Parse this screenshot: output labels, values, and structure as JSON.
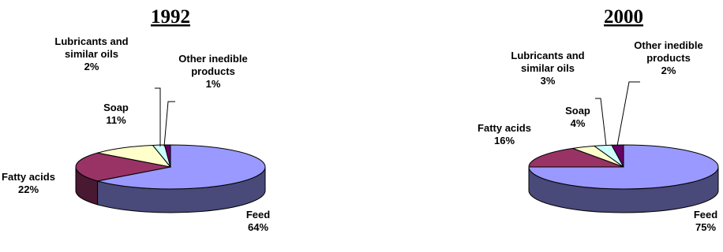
{
  "chart_data": [
    {
      "type": "pie",
      "title": "1992",
      "colors": [
        "#9999ff",
        "#993366",
        "#ffffcc",
        "#ccffff",
        "#660066"
      ],
      "slices": [
        {
          "label": [
            "Feed"
          ],
          "percent_label": "64%",
          "value": 64
        },
        {
          "label": [
            "Fatty acids"
          ],
          "percent_label": "22%",
          "value": 22
        },
        {
          "label": [
            "Soap"
          ],
          "percent_label": "11%",
          "value": 11
        },
        {
          "label": [
            "Lubricants and",
            "similar oils"
          ],
          "percent_label": "2%",
          "value": 2
        },
        {
          "label": [
            "Other inedible",
            "products"
          ],
          "percent_label": "1%",
          "value": 1
        }
      ]
    },
    {
      "type": "pie",
      "title": "2000",
      "colors": [
        "#9999ff",
        "#993366",
        "#ffffcc",
        "#ccffff",
        "#660066"
      ],
      "slices": [
        {
          "label": [
            "Feed"
          ],
          "percent_label": "75%",
          "value": 75
        },
        {
          "label": [
            "Fatty acids"
          ],
          "percent_label": "16%",
          "value": 16
        },
        {
          "label": [
            "Soap"
          ],
          "percent_label": "4%",
          "value": 4
        },
        {
          "label": [
            "Lubricants and",
            "similar oils"
          ],
          "percent_label": "3%",
          "value": 3
        },
        {
          "label": [
            "Other inedible",
            "products"
          ],
          "percent_label": "2%",
          "value": 2
        }
      ]
    }
  ]
}
